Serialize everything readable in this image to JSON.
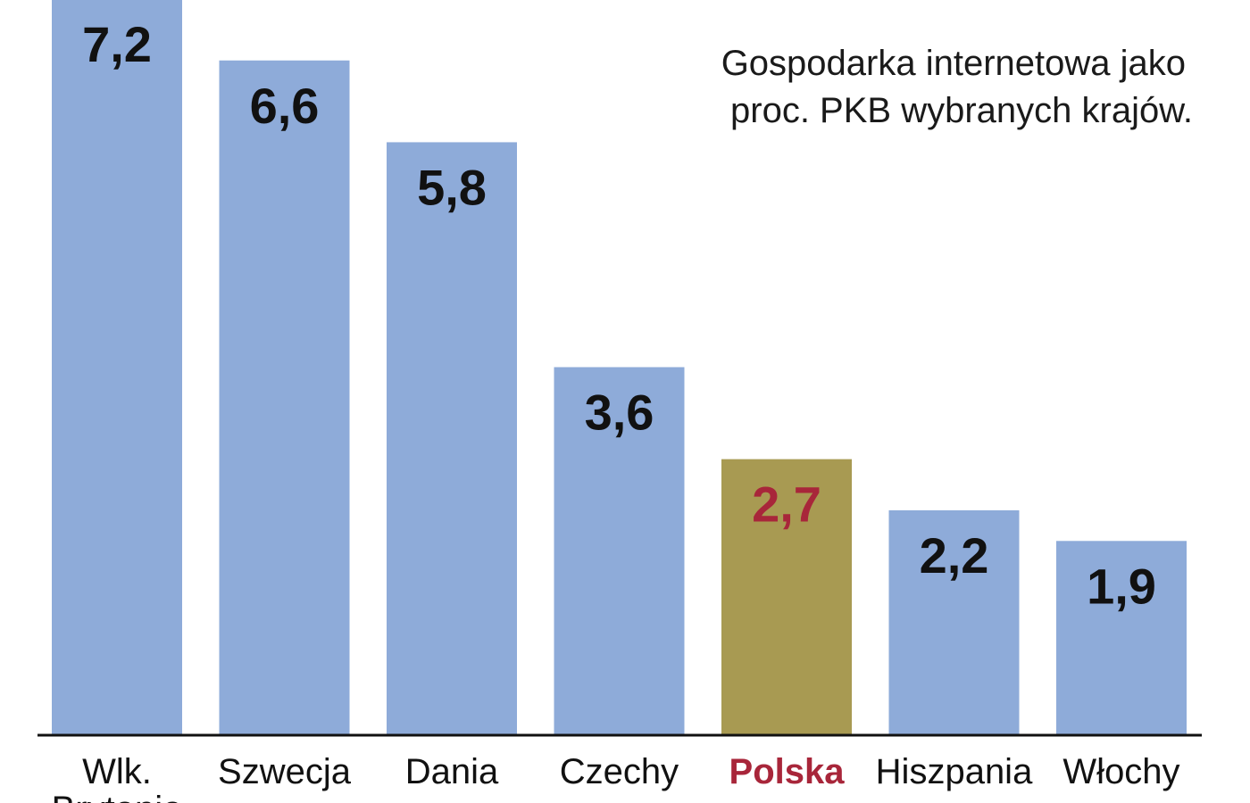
{
  "chart_data": {
    "type": "bar",
    "title_lines": [
      "Gospodarka internetowa jako",
      "proc. PKB wybranych krajów."
    ],
    "categories": [
      [
        "Wlk.",
        "Brytania"
      ],
      [
        "Szwecja"
      ],
      [
        "Dania"
      ],
      [
        "Czechy"
      ],
      [
        "Polska"
      ],
      [
        "Hiszpania"
      ],
      [
        "Włochy"
      ]
    ],
    "values": [
      7.2,
      6.6,
      5.8,
      3.6,
      2.7,
      2.2,
      1.9
    ],
    "value_labels": [
      "7,2",
      "6,6",
      "5,8",
      "3,6",
      "2,7",
      "2,2",
      "1,9"
    ],
    "highlight_index": 4,
    "ylim": [
      0,
      7.2
    ],
    "grid": false,
    "xlabel": "",
    "ylabel": ""
  },
  "colors": {
    "bar": "#8eabd9",
    "highlight_bar": "#a89a52",
    "label": "#111111",
    "highlight_label": "#a8263a",
    "axis": "#111111"
  }
}
